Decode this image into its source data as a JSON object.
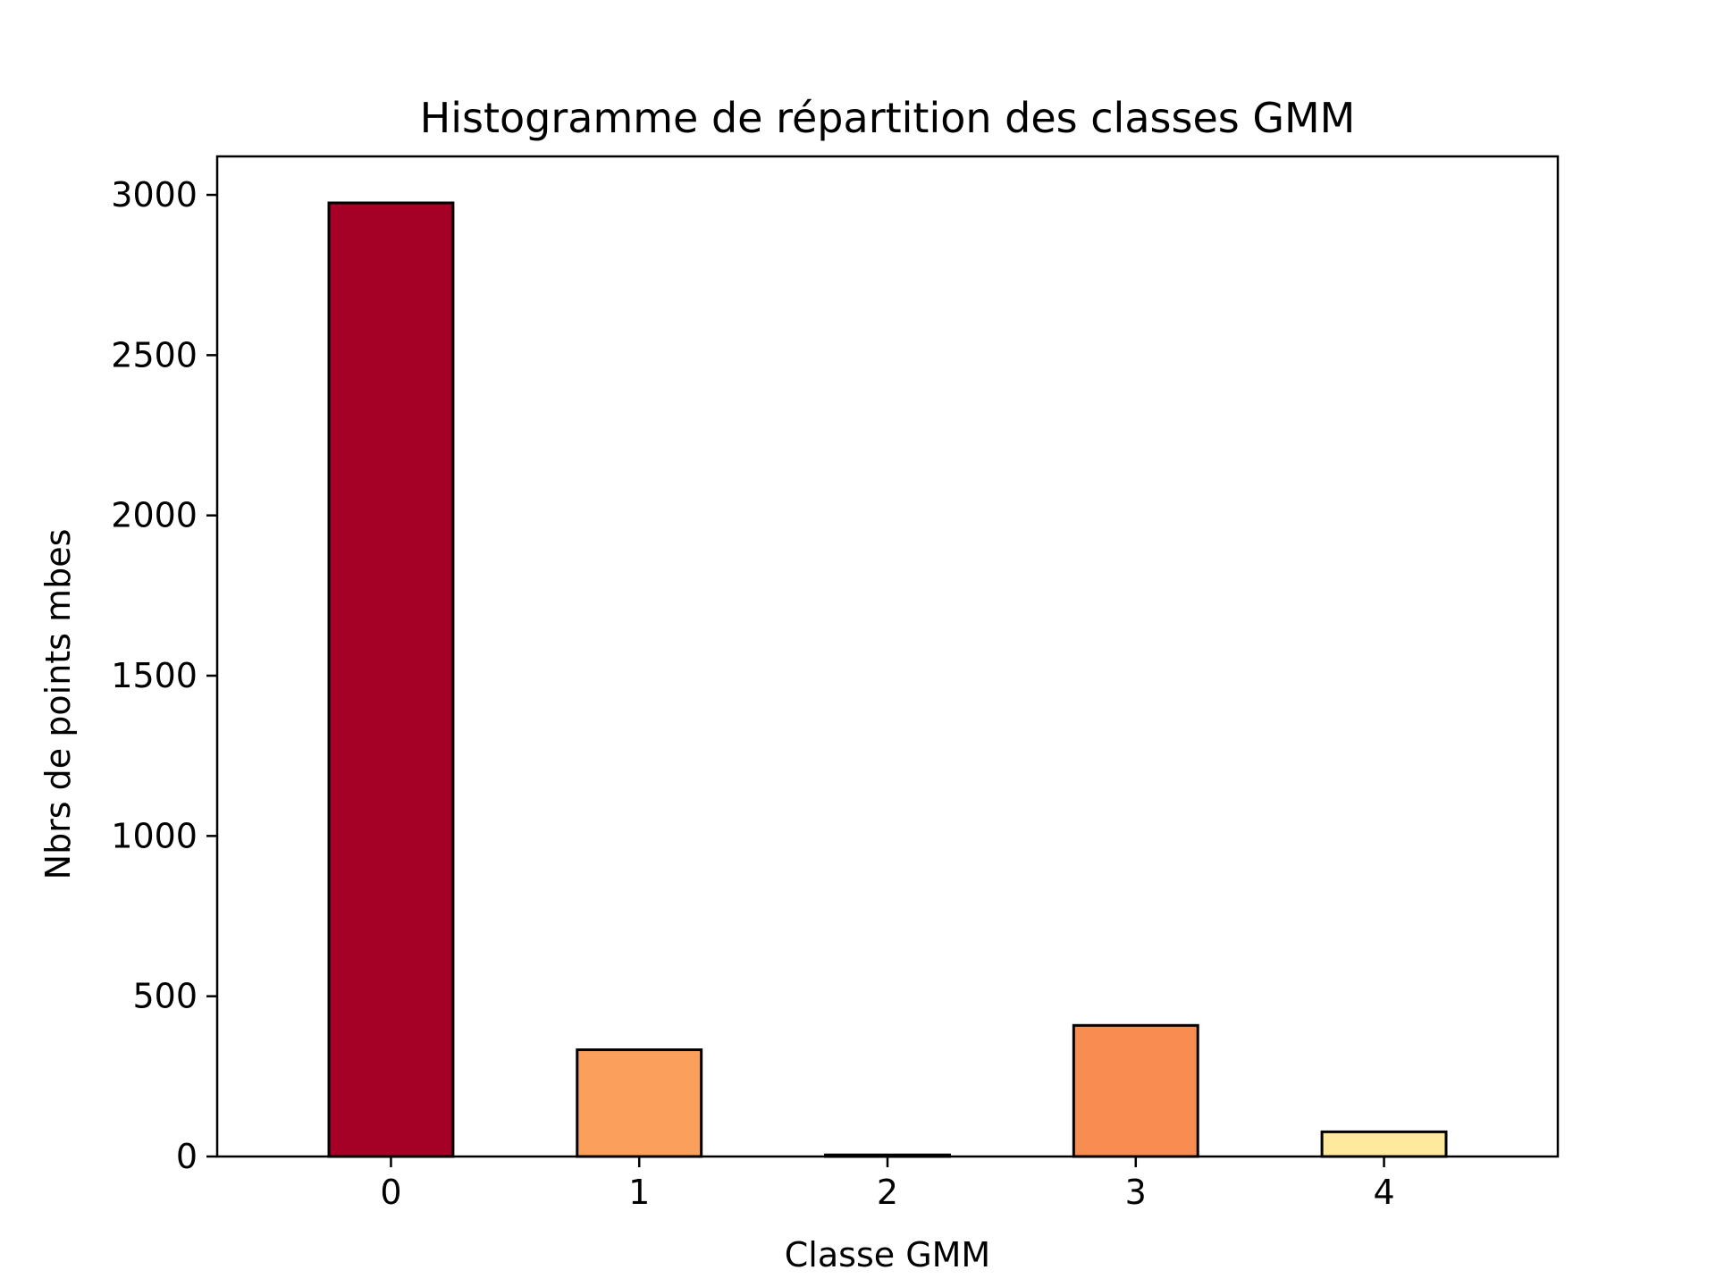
{
  "chart_data": {
    "type": "bar",
    "title": "Histogramme de répartition des classes GMM",
    "xlabel": "Classe GMM",
    "ylabel": "Nbrs de points mbes",
    "categories": [
      "0",
      "1",
      "2",
      "3",
      "4"
    ],
    "values": [
      2975,
      333,
      5,
      409,
      77
    ],
    "colors": [
      "#a50026",
      "#fba05b",
      "#fdbf6f",
      "#f88d52",
      "#fee99d"
    ],
    "edge_color": "#000000",
    "ylim": [
      0,
      3120
    ],
    "yticks": [
      0,
      500,
      1000,
      1500,
      2000,
      2500,
      3000
    ],
    "grid": false,
    "legend": "none"
  }
}
